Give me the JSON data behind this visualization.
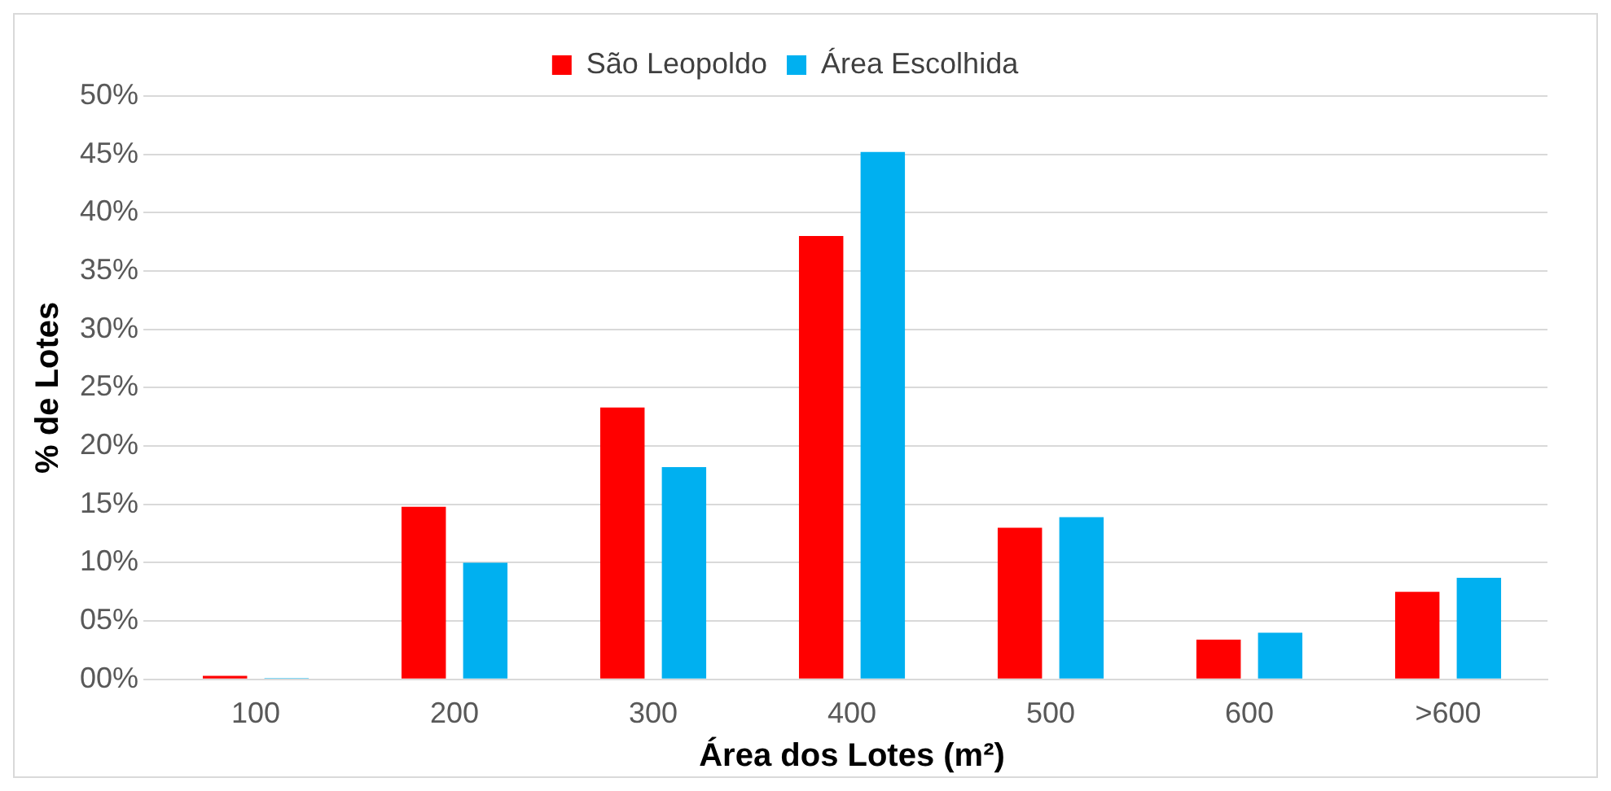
{
  "chart_data": {
    "type": "bar",
    "xlabel": "Área dos Lotes (m²)",
    "ylabel": "% de Lotes",
    "categories": [
      "100",
      "200",
      "300",
      "400",
      "500",
      "600",
      ">600"
    ],
    "series": [
      {
        "name": "São Leopoldo",
        "color": "#ff0000",
        "values": [
          0.3,
          14.8,
          23.3,
          38.0,
          13.0,
          3.4,
          7.5
        ]
      },
      {
        "name": "Área Escolhida",
        "color": "#00b0f0",
        "values": [
          0.1,
          10.0,
          18.2,
          45.2,
          13.9,
          4.0,
          8.7
        ]
      }
    ],
    "ylim": [
      0,
      50
    ],
    "yticks": [
      {
        "value": 0,
        "label": "00%"
      },
      {
        "value": 5,
        "label": "05%"
      },
      {
        "value": 10,
        "label": "10%"
      },
      {
        "value": 15,
        "label": "15%"
      },
      {
        "value": 20,
        "label": "20%"
      },
      {
        "value": 25,
        "label": "25%"
      },
      {
        "value": 30,
        "label": "30%"
      },
      {
        "value": 35,
        "label": "35%"
      },
      {
        "value": 40,
        "label": "40%"
      },
      {
        "value": 45,
        "label": "45%"
      },
      {
        "value": 50,
        "label": "50%"
      }
    ],
    "grid": "y",
    "legend": "top"
  }
}
